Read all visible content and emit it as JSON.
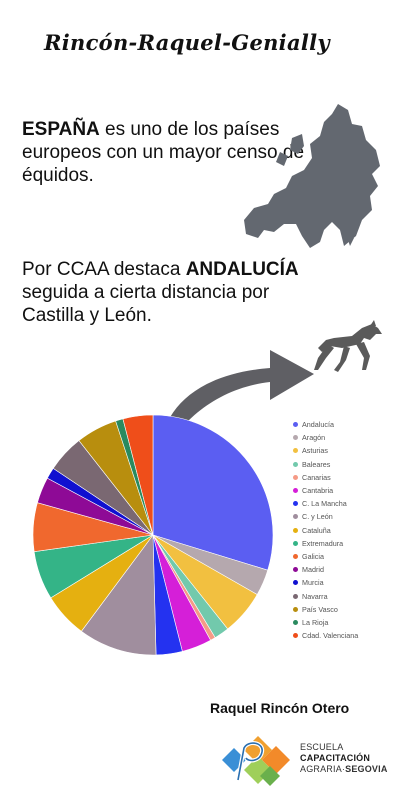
{
  "header": {
    "title": "Rincón-Raquel-Genially"
  },
  "intro": {
    "bold": "ESPAÑA",
    "text": " es uno de los países europeos con un mayor censo de équidos."
  },
  "regions": {
    "text_before": "Por CCAA destaca ",
    "bold": "ANDALUCÍA",
    "text_after": " seguida a cierta distancia por Castilla y León."
  },
  "chart_data": {
    "type": "pie",
    "start_angle_deg": 0,
    "legend_position": "right",
    "series": [
      {
        "name": "Andalucía",
        "value": 29.5,
        "color": "#5b5ef2"
      },
      {
        "name": "Aragón",
        "value": 3.5,
        "color": "#b5a8ae"
      },
      {
        "name": "Asturias",
        "value": 6.0,
        "color": "#f2c040"
      },
      {
        "name": "Baleares",
        "value": 2.0,
        "color": "#72c9ac"
      },
      {
        "name": "Canarias",
        "value": 0.7,
        "color": "#f59a86"
      },
      {
        "name": "Cantabria",
        "value": 4.0,
        "color": "#d51fd8"
      },
      {
        "name": "C. La Mancha",
        "value": 3.5,
        "color": "#2432f0"
      },
      {
        "name": "C. y León",
        "value": 10.5,
        "color": "#a08e9e"
      },
      {
        "name": "Cataluña",
        "value": 6.0,
        "color": "#e5b010"
      },
      {
        "name": "Extremadura",
        "value": 6.5,
        "color": "#34b487"
      },
      {
        "name": "Galicia",
        "value": 6.5,
        "color": "#f0682e"
      },
      {
        "name": "Madrid",
        "value": 3.5,
        "color": "#8e0a96"
      },
      {
        "name": "Murcia",
        "value": 1.5,
        "color": "#1010d0"
      },
      {
        "name": "Navarra",
        "value": 5.0,
        "color": "#7a6872"
      },
      {
        "name": "País Vasco",
        "value": 5.5,
        "color": "#b88e0e"
      },
      {
        "name": "La Rioja",
        "value": 1.0,
        "color": "#2a8a5f"
      },
      {
        "name": "Cdad. Valenciana",
        "value": 4.0,
        "color": "#ef4e1a"
      }
    ]
  },
  "author": "Raquel Rincón Otero",
  "logo": {
    "line1": "ESCUELA",
    "line2": "CAPACITACIÓN",
    "line3a": "AGRARIA",
    "line3b": "SEGOVIA"
  }
}
